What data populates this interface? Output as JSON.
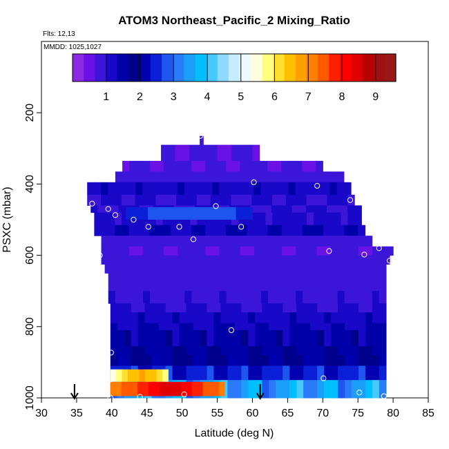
{
  "chart_data": {
    "type": "heatmap",
    "title": "ATOM3 Northeast_Pacific_2 Mixing_Ratio",
    "annotations": [
      "Flts: 12,13",
      "MMDD: 1025,1027"
    ],
    "xlabel": "Latitude (deg N)",
    "ylabel": "PSXC (mbar)",
    "xlim": [
      30,
      85
    ],
    "ylim": [
      1000,
      0
    ],
    "xticks": [
      30,
      35,
      40,
      45,
      50,
      55,
      60,
      65,
      70,
      75,
      80,
      85
    ],
    "yticks": [
      200,
      400,
      600,
      800,
      1000
    ],
    "colorbar": {
      "range": [
        0,
        9.6
      ],
      "ticks": [
        1,
        2,
        3,
        4,
        5,
        6,
        7,
        8,
        9
      ],
      "colors": [
        "#8a2be2",
        "#6a12e6",
        "#3b16d9",
        "#1a08c8",
        "#0000a8",
        "#00008c",
        "#0000b0",
        "#0a1fd6",
        "#1e55ee",
        "#2a7bf7",
        "#1a9ff8",
        "#00bfff",
        "#47c8ff",
        "#8fd9ff",
        "#c7ecff",
        "#eef8ff",
        "#fffde0",
        "#ffff80",
        "#ffe030",
        "#ffc000",
        "#ffa000",
        "#ff8000",
        "#ff5a00",
        "#ff2000",
        "#ff0000",
        "#e00000",
        "#b80000",
        "#a01010",
        "#9a1818"
      ]
    },
    "rows": [
      {
        "p": [
          265,
          290
        ],
        "lat": [
          52.5,
          53.0
        ],
        "value": 0.8
      },
      {
        "p": [
          290,
          335
        ],
        "lat": [
          47.0,
          61.0
        ],
        "value": 0.7
      },
      {
        "p": [
          335,
          365
        ],
        "lat": [
          41.5,
          70.0
        ],
        "value": 0.7
      },
      {
        "p": [
          365,
          395
        ],
        "lat": [
          40.5,
          73.0
        ],
        "value": 0.8
      },
      {
        "p": [
          395,
          430
        ],
        "lat": [
          36.5,
          74.0
        ],
        "value": 1.2
      },
      {
        "p": [
          430,
          460
        ],
        "lat": [
          36.5,
          74.5
        ],
        "value": 1.0
      },
      {
        "p": [
          460,
          480
        ],
        "lat": [
          37.0,
          75.5
        ],
        "value": 1.0
      },
      {
        "p": [
          480,
          515
        ],
        "lat": [
          37.5,
          75.5
        ],
        "value": 1.1
      },
      {
        "p": [
          515,
          545
        ],
        "lat": [
          37.5,
          76.0
        ],
        "value": 1.3
      },
      {
        "p": [
          545,
          575
        ],
        "lat": [
          38.5,
          77.0
        ],
        "value": 0.8
      },
      {
        "p": [
          575,
          600
        ],
        "lat": [
          38.5,
          80.0
        ],
        "value": 0.7
      },
      {
        "p": [
          600,
          625
        ],
        "lat": [
          38.5,
          79.5
        ],
        "value": 0.8
      },
      {
        "p": [
          625,
          650
        ],
        "lat": [
          39.0,
          79.0
        ],
        "value": 0.8
      },
      {
        "p": [
          650,
          700
        ],
        "lat": [
          39.5,
          79.0
        ],
        "value": 0.8
      },
      {
        "p": [
          700,
          735
        ],
        "lat": [
          39.5,
          79.0
        ],
        "value": 0.9
      },
      {
        "p": [
          735,
          760
        ],
        "lat": [
          39.8,
          79.0
        ],
        "value": 1.0
      },
      {
        "p": [
          760,
          790
        ],
        "lat": [
          39.8,
          79.0
        ],
        "value": 1.2
      },
      {
        "p": [
          790,
          810
        ],
        "lat": [
          39.8,
          79.0
        ],
        "value": 1.3
      },
      {
        "p": [
          810,
          855
        ],
        "lat": [
          39.8,
          79.0
        ],
        "value": 1.5
      },
      {
        "p": [
          855,
          880
        ],
        "lat": [
          39.8,
          79.0
        ],
        "value": 1.6
      },
      {
        "p": [
          880,
          910
        ],
        "lat": [
          39.8,
          79.0
        ],
        "value": 1.8
      },
      {
        "p": [
          910,
          950
        ],
        "lat": [
          39.8,
          79.0
        ],
        "value": 2.4
      },
      {
        "p": [
          950,
          1000
        ],
        "lat": [
          39.8,
          79.0
        ],
        "value": 3.5
      }
    ],
    "features": [
      {
        "p": [
          465,
          500
        ],
        "lat": [
          42.0,
          60.0
        ],
        "value": 3.0,
        "note": "blue band near 520 mbar"
      },
      {
        "p": [
          920,
          955
        ],
        "lat": [
          39.8,
          48.0
        ],
        "value": 6.8
      },
      {
        "p": [
          955,
          995
        ],
        "lat": [
          39.8,
          56.0
        ],
        "value": 8.5
      }
    ],
    "points": [
      {
        "lat": 52.6,
        "p": 265
      },
      {
        "lat": 60.2,
        "p": 395
      },
      {
        "lat": 69.2,
        "p": 405
      },
      {
        "lat": 37.2,
        "p": 455
      },
      {
        "lat": 39.5,
        "p": 470
      },
      {
        "lat": 40.5,
        "p": 487
      },
      {
        "lat": 54.8,
        "p": 462
      },
      {
        "lat": 43.1,
        "p": 500
      },
      {
        "lat": 45.2,
        "p": 520
      },
      {
        "lat": 49.6,
        "p": 520
      },
      {
        "lat": 58.4,
        "p": 520
      },
      {
        "lat": 51.6,
        "p": 555
      },
      {
        "lat": 73.9,
        "p": 445
      },
      {
        "lat": 38.3,
        "p": 600
      },
      {
        "lat": 70.9,
        "p": 588
      },
      {
        "lat": 75.9,
        "p": 598
      },
      {
        "lat": 78.0,
        "p": 580
      },
      {
        "lat": 79.5,
        "p": 615
      },
      {
        "lat": 57.0,
        "p": 810
      },
      {
        "lat": 39.9,
        "p": 873
      },
      {
        "lat": 39.8,
        "p": 948
      },
      {
        "lat": 70.1,
        "p": 945
      },
      {
        "lat": 39.8,
        "p": 1000
      },
      {
        "lat": 44.0,
        "p": 997
      },
      {
        "lat": 50.3,
        "p": 990
      },
      {
        "lat": 75.2,
        "p": 985
      },
      {
        "lat": 78.7,
        "p": 995
      }
    ],
    "arrows": [
      {
        "lat": 34.7
      },
      {
        "lat": 61.1
      }
    ]
  }
}
